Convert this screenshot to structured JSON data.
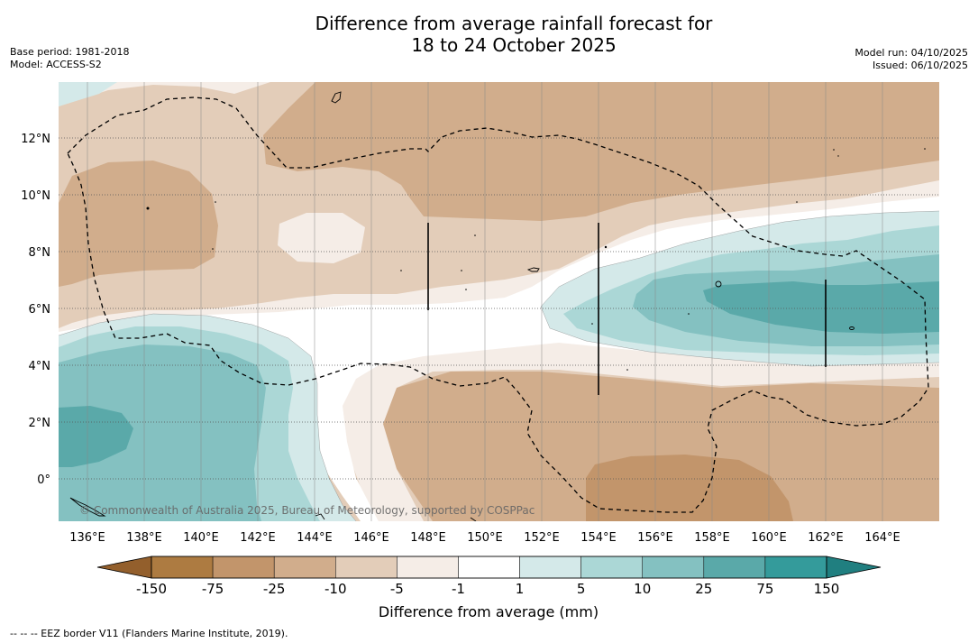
{
  "header": {
    "title_line1": "Difference from average rainfall forecast for",
    "title_line2": "18 to 24 October 2025",
    "base_period": "Base period: 1981-2018",
    "model": "Model: ACCESS-S2",
    "model_run": "Model run: 04/10/2025",
    "issued": "Issued: 06/10/2025"
  },
  "map": {
    "region": "Papua New Guinea and Federated States of Micronesia surrounds",
    "copyright": "© Commonwealth of Australia 2025, Bureau of Meteorology, supported by COSPPac",
    "lat_labels": [
      "12°N",
      "10°N",
      "8°N",
      "6°N",
      "4°N",
      "2°N",
      "0°"
    ],
    "lon_labels": [
      "136°E",
      "138°E",
      "140°E",
      "142°E",
      "144°E",
      "146°E",
      "148°E",
      "150°E",
      "152°E",
      "154°E",
      "156°E",
      "158°E",
      "160°E",
      "162°E",
      "164°E"
    ],
    "layers": {
      "base": "#d1ad8c",
      "fill_layers": "#e3cdb9 #f5ede7 #ffffff #d4e9e9 #abd7d6 #84c1c1 #5aa9a9"
    }
  },
  "colorbar": {
    "title": "Difference from average (mm)",
    "labels": [
      "-150",
      "-75",
      "-25",
      "-10",
      "-5",
      "-1",
      "1",
      "5",
      "10",
      "25",
      "75",
      "150"
    ],
    "colors": [
      "#ad7b41",
      "#c2956b",
      "#d1ad8c",
      "#e3cdb9",
      "#f5ede7",
      "#ffffff",
      "#d4e9e9",
      "#abd7d6",
      "#84c1c1",
      "#5aa9a9",
      "#349b9b"
    ],
    "under_color": "#935f2c",
    "over_color": "#207f80"
  },
  "footnote": "-- -- -- EEZ border V11 (Flanders Marine Institute, 2019)."
}
